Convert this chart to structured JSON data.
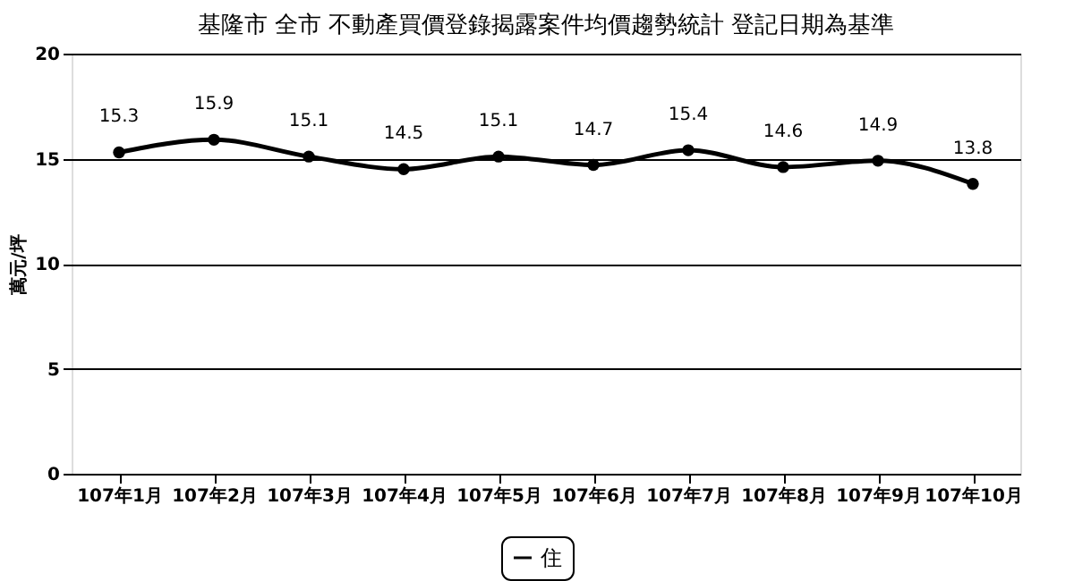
{
  "chart_data": {
    "type": "line",
    "title": "基隆市 全市 不動產買價登錄揭露案件均價趨勢統計 登記日期為基準",
    "ylabel": "萬元/坪",
    "categories": [
      "107年1月",
      "107年2月",
      "107年3月",
      "107年4月",
      "107年5月",
      "107年6月",
      "107年7月",
      "107年8月",
      "107年9月",
      "107年10月"
    ],
    "series": [
      {
        "name": "住",
        "color": "#000000",
        "values": [
          15.3,
          15.9,
          15.1,
          14.5,
          15.1,
          14.7,
          15.4,
          14.6,
          14.9,
          13.8
        ]
      }
    ],
    "ylim": [
      0,
      20
    ],
    "yticks": [
      0,
      5,
      10,
      15,
      20
    ],
    "grid": "y",
    "legend": "bottom",
    "marker": "circle",
    "line_style": "solid",
    "data_labels": true
  }
}
